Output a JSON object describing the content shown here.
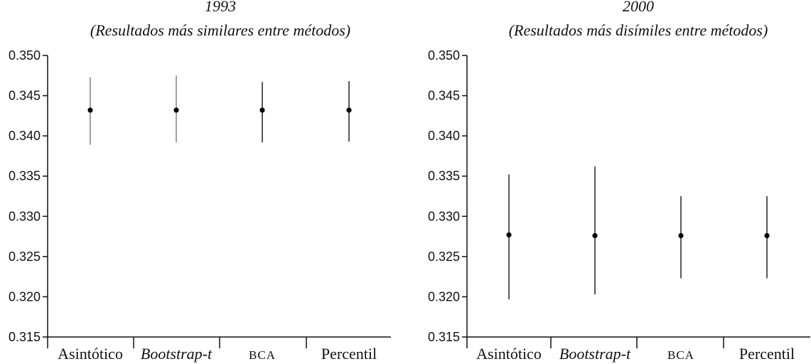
{
  "chart_data": [
    {
      "type": "scatter",
      "subtype": "point-with-interval",
      "title": "1993",
      "subtitle": "(Resultados más similares entre métodos)",
      "categories": [
        "Asintótico",
        "Bootstrap-t",
        "BCA",
        "Percentil"
      ],
      "category_styles": [
        "normal",
        "italic",
        "smallcaps",
        "normal"
      ],
      "estimates": [
        0.3432,
        0.3432,
        0.3432,
        0.3432
      ],
      "lower": [
        0.3389,
        0.3392,
        0.3392,
        0.3393
      ],
      "upper": [
        0.3473,
        0.3475,
        0.3467,
        0.3468
      ],
      "ylim": [
        0.315,
        0.35
      ],
      "yticks": [
        "0.315",
        "0.320",
        "0.325",
        "0.330",
        "0.335",
        "0.340",
        "0.345",
        "0.350"
      ],
      "xlabel": "",
      "ylabel": "",
      "whisker_colors": [
        "#777777",
        "#777777",
        "#111111",
        "#111111"
      ]
    },
    {
      "type": "scatter",
      "subtype": "point-with-interval",
      "title": "2000",
      "subtitle": "(Resultados más disímiles entre métodos)",
      "categories": [
        "Asintótico",
        "Bootstrap-t",
        "BCA",
        "Percentil"
      ],
      "category_styles": [
        "normal",
        "italic",
        "smallcaps",
        "normal"
      ],
      "estimates": [
        0.3277,
        0.3276,
        0.3276,
        0.3276
      ],
      "lower": [
        0.3197,
        0.3203,
        0.3223,
        0.3223
      ],
      "upper": [
        0.3352,
        0.3362,
        0.3325,
        0.3325
      ],
      "ylim": [
        0.315,
        0.35
      ],
      "yticks": [
        "0.315",
        "0.320",
        "0.325",
        "0.330",
        "0.335",
        "0.340",
        "0.345",
        "0.350"
      ],
      "xlabel": "",
      "ylabel": "",
      "whisker_colors": [
        "#111111",
        "#111111",
        "#111111",
        "#111111"
      ]
    }
  ]
}
